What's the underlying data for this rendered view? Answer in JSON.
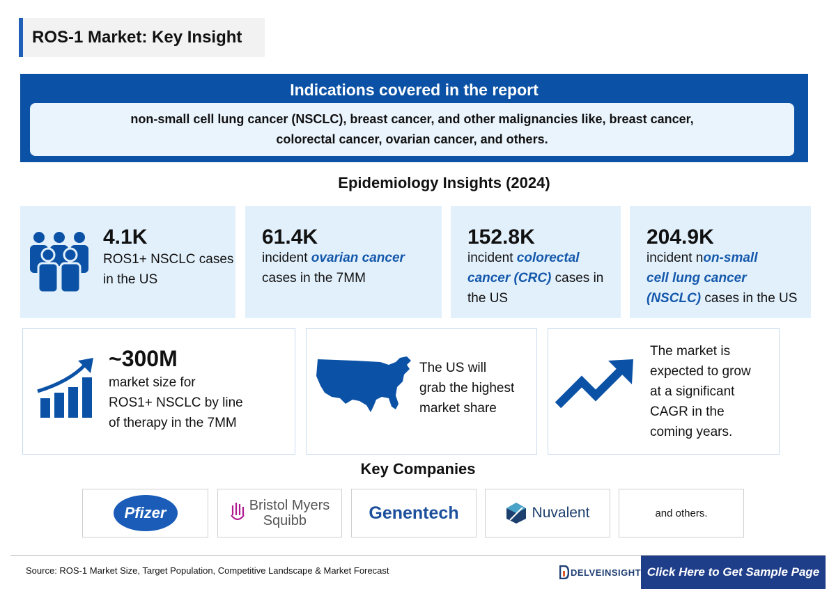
{
  "title": "ROS-1 Market: Key Insight",
  "indications": {
    "heading": "Indications covered in the report",
    "text": "non-small cell lung cancer (NSCLC), breast cancer, and other malignancies like, breast cancer, colorectal cancer, ovarian cancer, and others."
  },
  "epidemiology": {
    "heading": "Epidemiology Insights (2024)",
    "stats": [
      {
        "value": "4.1K",
        "line1": "ROS1+ NSCLC cases",
        "line2": "in the US"
      },
      {
        "value": "61.4K",
        "prefix": "incident ",
        "highlight": "ovarian cancer",
        "suffix": "cases in the 7MM"
      },
      {
        "value": "152.8K",
        "prefix": "incident ",
        "highlight_a": "colorectal",
        "highlight_b": "cancer (CRC)",
        "suffix_a": " cases in",
        "suffix_b": "the US"
      },
      {
        "value": "204.9K",
        "prefix": "incident n",
        "highlight_a": "on-small",
        "highlight_b": "cell lung cancer",
        "highlight_c": "(NSCLC)",
        "suffix": " cases in the US"
      }
    ]
  },
  "market": {
    "size_value": "~300M",
    "size_lines": [
      "market size for",
      "ROS1+ NSCLC by line",
      "of therapy in the 7MM"
    ],
    "us_lines": [
      "The US will",
      "grab the highest",
      "market share"
    ],
    "cagr_lines": [
      "The market is",
      "expected to grow",
      "at a significant",
      "CAGR in the",
      "coming years."
    ]
  },
  "companies": {
    "heading": "Key Companies",
    "list": [
      "Pfizer",
      "Bristol Myers",
      "Squibb",
      "Genentech",
      "Nuvalent",
      "and others."
    ]
  },
  "footer": {
    "source": "Source: ROS-1 Market Size, Target Population, Competitive Landscape & Market Forecast",
    "brand": "DELVEINSIGHT",
    "cta": "Click Here to Get Sample Page"
  },
  "colors": {
    "primary": "#0b52a6",
    "light_bg": "#e2f0fb",
    "accent": "#1458ab",
    "cta": "#1f3e8a"
  }
}
